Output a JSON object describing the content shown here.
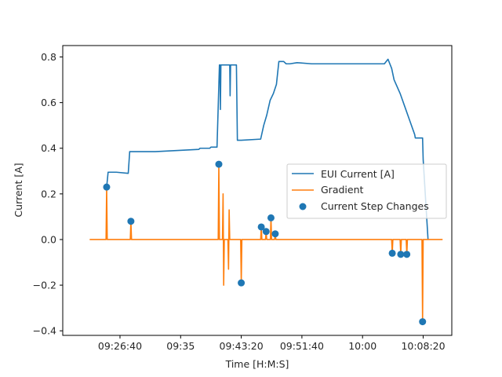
{
  "chart_data": {
    "type": "line",
    "xlabel": "Time [H:M:S]",
    "ylabel": "Current [A]",
    "xlim": [
      "09:18:48",
      "10:12:16"
    ],
    "ylim": [
      -0.42,
      0.85
    ],
    "x_ticks": [
      "09:26:40",
      "09:35",
      "09:43:20",
      "09:51:40",
      "10:00",
      "10:08:20"
    ],
    "y_ticks": [
      "−0.4",
      "−0.2",
      "0.0",
      "0.2",
      "0.4",
      "0.6",
      "0.8"
    ],
    "legend": {
      "position": "center-right"
    },
    "colors": {
      "current": "#1f77b4",
      "gradient": "#ff7f0e",
      "steps": "#1f77b4"
    },
    "series": [
      {
        "name": "EUI Current [A]",
        "kind": "line",
        "x": [
          "09:24:50",
          "09:25:02",
          "09:25:05",
          "09:26:10",
          "09:27:48",
          "09:28:00",
          "09:28:20",
          "09:31:30",
          "09:37:30",
          "09:37:40",
          "09:39:00",
          "09:39:10",
          "09:40:00",
          "09:40:20",
          "09:40:25",
          "09:40:28",
          "09:40:32",
          "09:41:40",
          "09:41:45",
          "09:41:48",
          "09:41:52",
          "09:42:30",
          "09:42:40",
          "09:42:48",
          "09:43:20",
          "09:46:00",
          "09:46:25",
          "09:46:50",
          "09:47:18",
          "09:47:45",
          "09:48:10",
          "09:48:30",
          "09:49:10",
          "09:49:30",
          "09:50:00",
          "09:51:00",
          "09:53:00",
          "09:57:00",
          "10:00:00",
          "10:03:00",
          "10:03:30",
          "10:04:00",
          "10:04:20",
          "10:05:10",
          "10:05:50",
          "10:06:30",
          "10:07:10",
          "10:07:15",
          "10:08:00",
          "10:08:15",
          "10:08:20",
          "10:09:00"
        ],
        "y": [
          0.23,
          0.295,
          0.295,
          0.295,
          0.29,
          0.385,
          0.385,
          0.385,
          0.395,
          0.4,
          0.4,
          0.405,
          0.405,
          0.765,
          0.765,
          0.57,
          0.765,
          0.765,
          0.765,
          0.63,
          0.765,
          0.765,
          0.765,
          0.435,
          0.435,
          0.44,
          0.5,
          0.545,
          0.61,
          0.64,
          0.68,
          0.78,
          0.78,
          0.77,
          0.77,
          0.775,
          0.77,
          0.77,
          0.77,
          0.77,
          0.79,
          0.75,
          0.7,
          0.64,
          0.58,
          0.52,
          0.46,
          0.445,
          0.445,
          0.445,
          0.35,
          0.0
        ]
      },
      {
        "name": "Gradient",
        "kind": "line",
        "x": [
          "09:22:30",
          "09:24:45",
          "09:24:50",
          "09:24:55",
          "09:28:05",
          "09:28:10",
          "09:28:15",
          "09:40:10",
          "09:40:15",
          "09:40:20",
          "09:40:45",
          "09:40:50",
          "09:40:55",
          "09:41:00",
          "09:41:05",
          "09:41:30",
          "09:41:35",
          "09:41:40",
          "09:41:45",
          "09:41:50",
          "09:43:15",
          "09:43:20",
          "09:43:25",
          "09:46:00",
          "09:46:05",
          "09:46:10",
          "09:46:40",
          "09:46:45",
          "09:46:50",
          "09:47:20",
          "09:47:25",
          "09:47:30",
          "09:47:55",
          "09:48:00",
          "09:48:05",
          "10:04:00",
          "10:04:05",
          "10:04:10",
          "10:05:10",
          "10:05:15",
          "10:05:20",
          "10:06:00",
          "10:06:05",
          "10:06:10",
          "10:08:10",
          "10:08:15",
          "10:08:20",
          "10:09:40",
          "10:11:00"
        ],
        "y": [
          0.0,
          0.0,
          0.23,
          0.0,
          0.0,
          0.08,
          0.0,
          0.0,
          0.33,
          0.0,
          0.0,
          0.2,
          -0.2,
          0.0,
          0.0,
          0.0,
          -0.13,
          0.13,
          0.0,
          0.0,
          0.0,
          -0.19,
          0.0,
          0.0,
          0.055,
          0.0,
          0.0,
          0.035,
          0.0,
          0.0,
          0.095,
          0.0,
          0.0,
          0.025,
          0.0,
          0.0,
          -0.06,
          0.0,
          0.0,
          -0.065,
          0.0,
          0.0,
          -0.065,
          0.0,
          0.0,
          -0.36,
          0.0,
          0.0,
          0.0
        ]
      },
      {
        "name": "Current Step Changes",
        "kind": "scatter",
        "x": [
          "09:24:50",
          "09:28:10",
          "09:40:15",
          "09:43:20",
          "09:46:05",
          "09:46:45",
          "09:47:25",
          "09:48:00",
          "10:04:05",
          "10:05:15",
          "10:06:05",
          "10:08:15"
        ],
        "y": [
          0.23,
          0.08,
          0.33,
          -0.19,
          0.055,
          0.035,
          0.095,
          0.025,
          -0.06,
          -0.065,
          -0.065,
          -0.36
        ]
      }
    ]
  }
}
